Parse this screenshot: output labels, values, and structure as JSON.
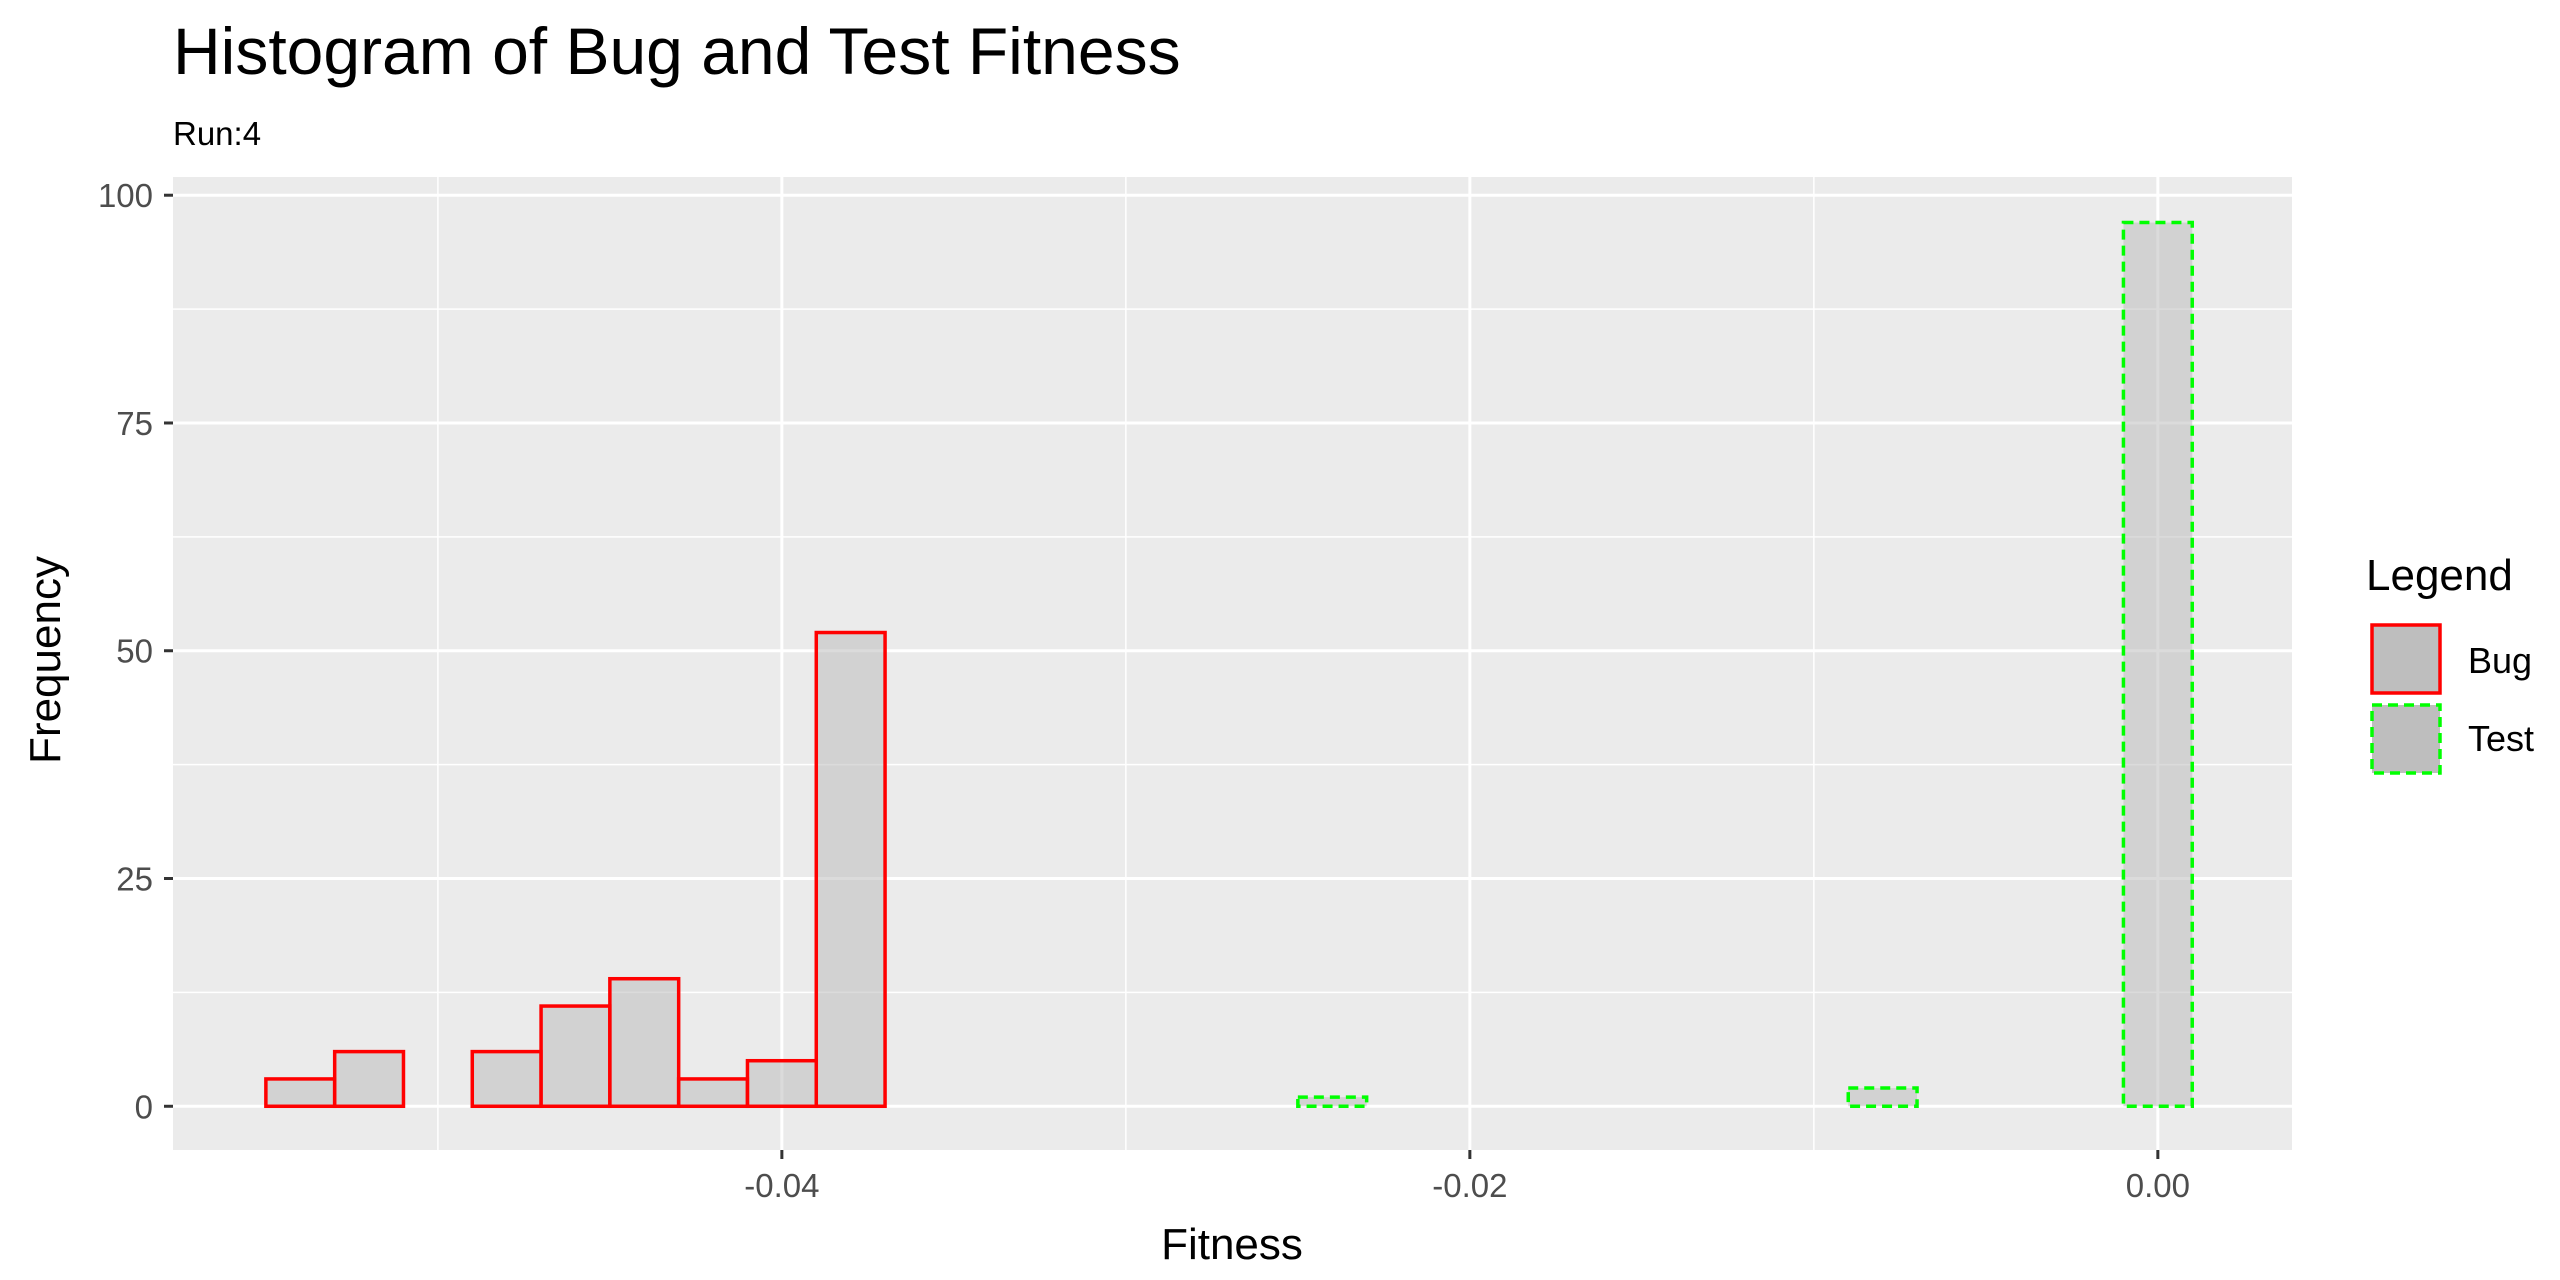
{
  "chart_data": {
    "type": "bar",
    "title": "Histogram of Bug and Test Fitness",
    "subtitle": "Run:4",
    "xlabel": "Fitness",
    "ylabel": "Frequency",
    "xlim": [
      -0.0577,
      0.0039
    ],
    "ylim": [
      -4.8,
      102
    ],
    "x_ticks": [
      -0.04,
      -0.02,
      0.0
    ],
    "x_tick_labels": [
      "-0.04",
      "-0.02",
      "0.00"
    ],
    "y_ticks": [
      0,
      25,
      50,
      75,
      100
    ],
    "y_tick_labels": [
      "0",
      "25",
      "50",
      "75",
      "100"
    ],
    "bin_width": 0.002,
    "bin_start": -0.055,
    "bin_count": 28,
    "grid": true,
    "legend": {
      "title": "Legend",
      "position": "right"
    },
    "series": [
      {
        "name": "Bug",
        "outline_color": "#ff0000",
        "fill_color": "#bebebe",
        "line_style": "solid",
        "values": [
          3,
          6,
          0,
          6,
          11,
          14,
          3,
          5,
          52,
          0,
          0,
          0,
          0,
          0,
          0,
          0,
          0,
          0,
          0,
          0,
          0,
          0,
          0,
          0,
          0,
          0,
          0,
          0
        ]
      },
      {
        "name": "Test",
        "outline_color": "#00ff00",
        "fill_color": "#bebebe",
        "line_style": "dashed",
        "values": [
          0,
          0,
          0,
          0,
          0,
          0,
          0,
          0,
          0,
          0,
          0,
          0,
          0,
          0,
          0,
          1,
          0,
          0,
          0,
          0,
          0,
          0,
          0,
          2,
          0,
          0,
          0,
          97
        ]
      }
    ]
  }
}
